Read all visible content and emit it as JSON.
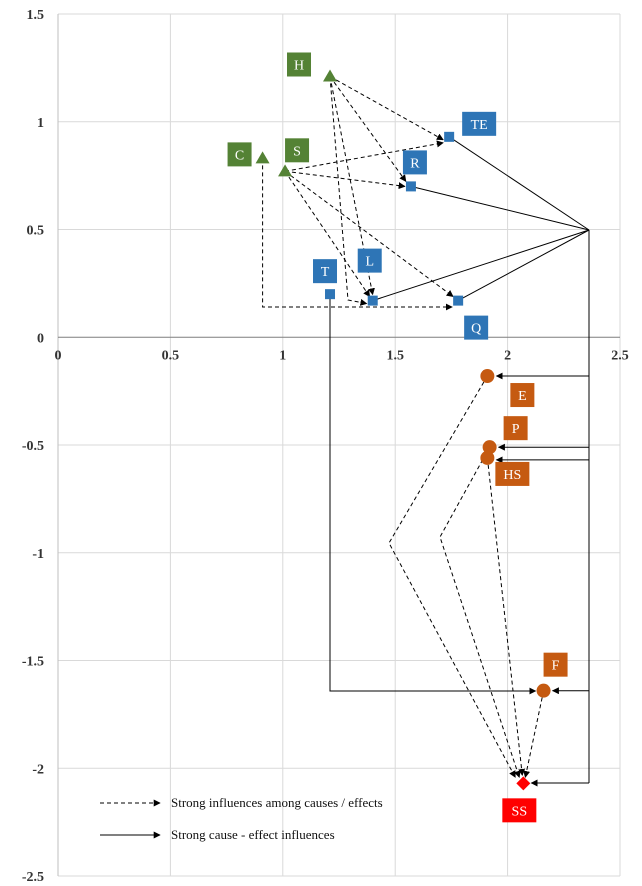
{
  "chart_data": {
    "type": "scatter",
    "xlim": [
      0,
      2.5
    ],
    "ylim": [
      -2.5,
      1.5
    ],
    "x_ticks": [
      0,
      0.5,
      1,
      1.5,
      2,
      2.5
    ],
    "x_tick_labels": [
      "0",
      "0.5",
      "1",
      "1.5",
      "2",
      "2.5"
    ],
    "y_ticks": [
      1.5,
      1,
      0.5,
      0,
      -0.5,
      -1,
      -1.5,
      -2,
      -2.5
    ],
    "y_tick_labels": [
      "1.5",
      "1",
      "0.5",
      "0",
      "-0.5",
      "-1",
      "-1.5",
      "-2",
      "-2.5"
    ],
    "grid": true,
    "colors": {
      "green": "#548235",
      "blue": "#2E75B6",
      "orange": "#C55A11",
      "red": "#FF0000",
      "grid": "#d9d9d9"
    },
    "points": [
      {
        "label": "H",
        "x": 1.21,
        "y": 1.21,
        "marker": "triangle",
        "color": "#548235"
      },
      {
        "label": "S",
        "x": 1.01,
        "y": 0.77,
        "marker": "triangle",
        "color": "#548235"
      },
      {
        "label": "C",
        "x": 0.91,
        "y": 0.83,
        "marker": "triangle",
        "color": "#548235"
      },
      {
        "label": "TE",
        "x": 1.74,
        "y": 0.93,
        "marker": "square",
        "color": "#2E75B6"
      },
      {
        "label": "R",
        "x": 1.57,
        "y": 0.7,
        "marker": "square",
        "color": "#2E75B6"
      },
      {
        "label": "L",
        "x": 1.4,
        "y": 0.17,
        "marker": "square",
        "color": "#2E75B6"
      },
      {
        "label": "T",
        "x": 1.21,
        "y": 0.2,
        "marker": "square",
        "color": "#2E75B6"
      },
      {
        "label": "Q",
        "x": 1.78,
        "y": 0.17,
        "marker": "square",
        "color": "#2E75B6"
      },
      {
        "label": "E",
        "x": 1.91,
        "y": -0.18,
        "marker": "circle",
        "color": "#C55A11"
      },
      {
        "label": "P",
        "x": 1.92,
        "y": -0.51,
        "marker": "circle",
        "color": "#C55A11"
      },
      {
        "label": "HS",
        "x": 1.91,
        "y": -0.56,
        "marker": "circle",
        "color": "#C55A11"
      },
      {
        "label": "F",
        "x": 2.16,
        "y": -1.64,
        "marker": "circle",
        "color": "#C55A11"
      },
      {
        "label": "SS",
        "x": 2.07,
        "y": -2.07,
        "marker": "diamond",
        "color": "#FF0000"
      }
    ],
    "legend": {
      "placement": "bottom-left",
      "entries": [
        {
          "text": "Strong influences among causes / effects",
          "style": "dashed"
        },
        {
          "text": "Strong cause - effect influences",
          "style": "solid"
        }
      ]
    }
  }
}
